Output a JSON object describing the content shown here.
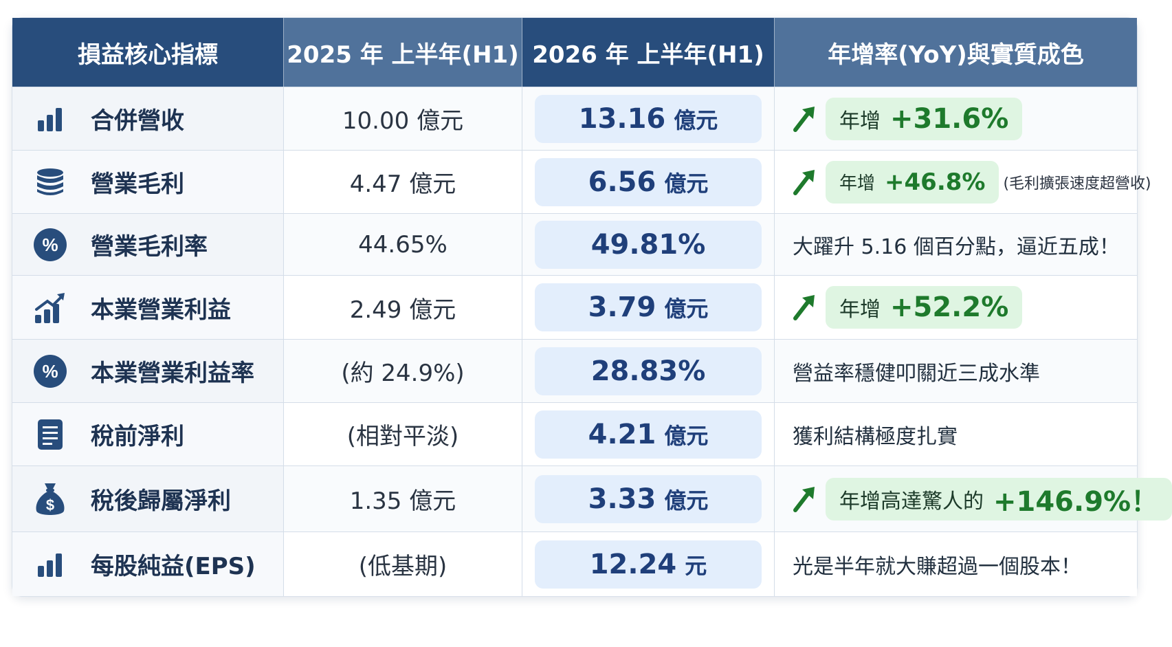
{
  "header": {
    "col1": "損益核心指標",
    "col2": "2025 年 上半年(H1)",
    "col3": "2026 年 上半年(H1)",
    "col4": "年增率(YoY)與實質成色"
  },
  "colors": {
    "header_dark": "#284d7c",
    "header_light": "#50729b",
    "highlight_bg": "#e3eefc",
    "highlight_text": "#1f3f7a",
    "growth_green": "#1e7a2c",
    "growth_pill_bg": "#dff5e2"
  },
  "rows": [
    {
      "icon": "bar-chart-icon",
      "metric": "合併營收",
      "prev": "10.00 億元",
      "cur_value": "13.16",
      "cur_unit": "億元",
      "yoy": {
        "type": "pill",
        "prefix": "年增",
        "value": "+31.6%",
        "note": ""
      }
    },
    {
      "icon": "coin-stack-icon",
      "metric": "營業毛利",
      "prev": "4.47 億元",
      "cur_value": "6.56",
      "cur_unit": "億元",
      "yoy": {
        "type": "pill",
        "prefix": "年增",
        "value": "+46.8%",
        "note": "(毛利擴張速度超營收)"
      }
    },
    {
      "icon": "percent-icon",
      "metric": "營業毛利率",
      "prev": "44.65%",
      "cur_value": "49.81%",
      "cur_unit": "",
      "yoy": {
        "type": "text",
        "text": "大躍升 5.16 個百分點，逼近五成！"
      }
    },
    {
      "icon": "growth-chart-icon",
      "metric": "本業營業利益",
      "prev": "2.49 億元",
      "cur_value": "3.79",
      "cur_unit": "億元",
      "yoy": {
        "type": "pill",
        "prefix": "年增",
        "value": "+52.2%",
        "note": ""
      }
    },
    {
      "icon": "percent-icon",
      "metric": "本業營業利益率",
      "prev": "(約 24.9%)",
      "cur_value": "28.83%",
      "cur_unit": "",
      "yoy": {
        "type": "text",
        "text": "營益率穩健叩關近三成水準"
      }
    },
    {
      "icon": "document-icon",
      "metric": "稅前淨利",
      "prev": "(相對平淡)",
      "cur_value": "4.21",
      "cur_unit": "億元",
      "yoy": {
        "type": "text",
        "text": "獲利結構極度扎實"
      }
    },
    {
      "icon": "money-bag-icon",
      "metric": "稅後歸屬淨利",
      "prev": "1.35 億元",
      "cur_value": "3.33",
      "cur_unit": "億元",
      "yoy": {
        "type": "pill",
        "prefix": "年增高達驚人的",
        "value": "+146.9%！",
        "note": ""
      }
    },
    {
      "icon": "bar-chart-icon",
      "metric": "每股純益(EPS)",
      "prev": "(低基期)",
      "cur_value": "12.24",
      "cur_unit": "元",
      "yoy": {
        "type": "text",
        "text": "光是半年就大賺超過一個股本！"
      }
    }
  ]
}
